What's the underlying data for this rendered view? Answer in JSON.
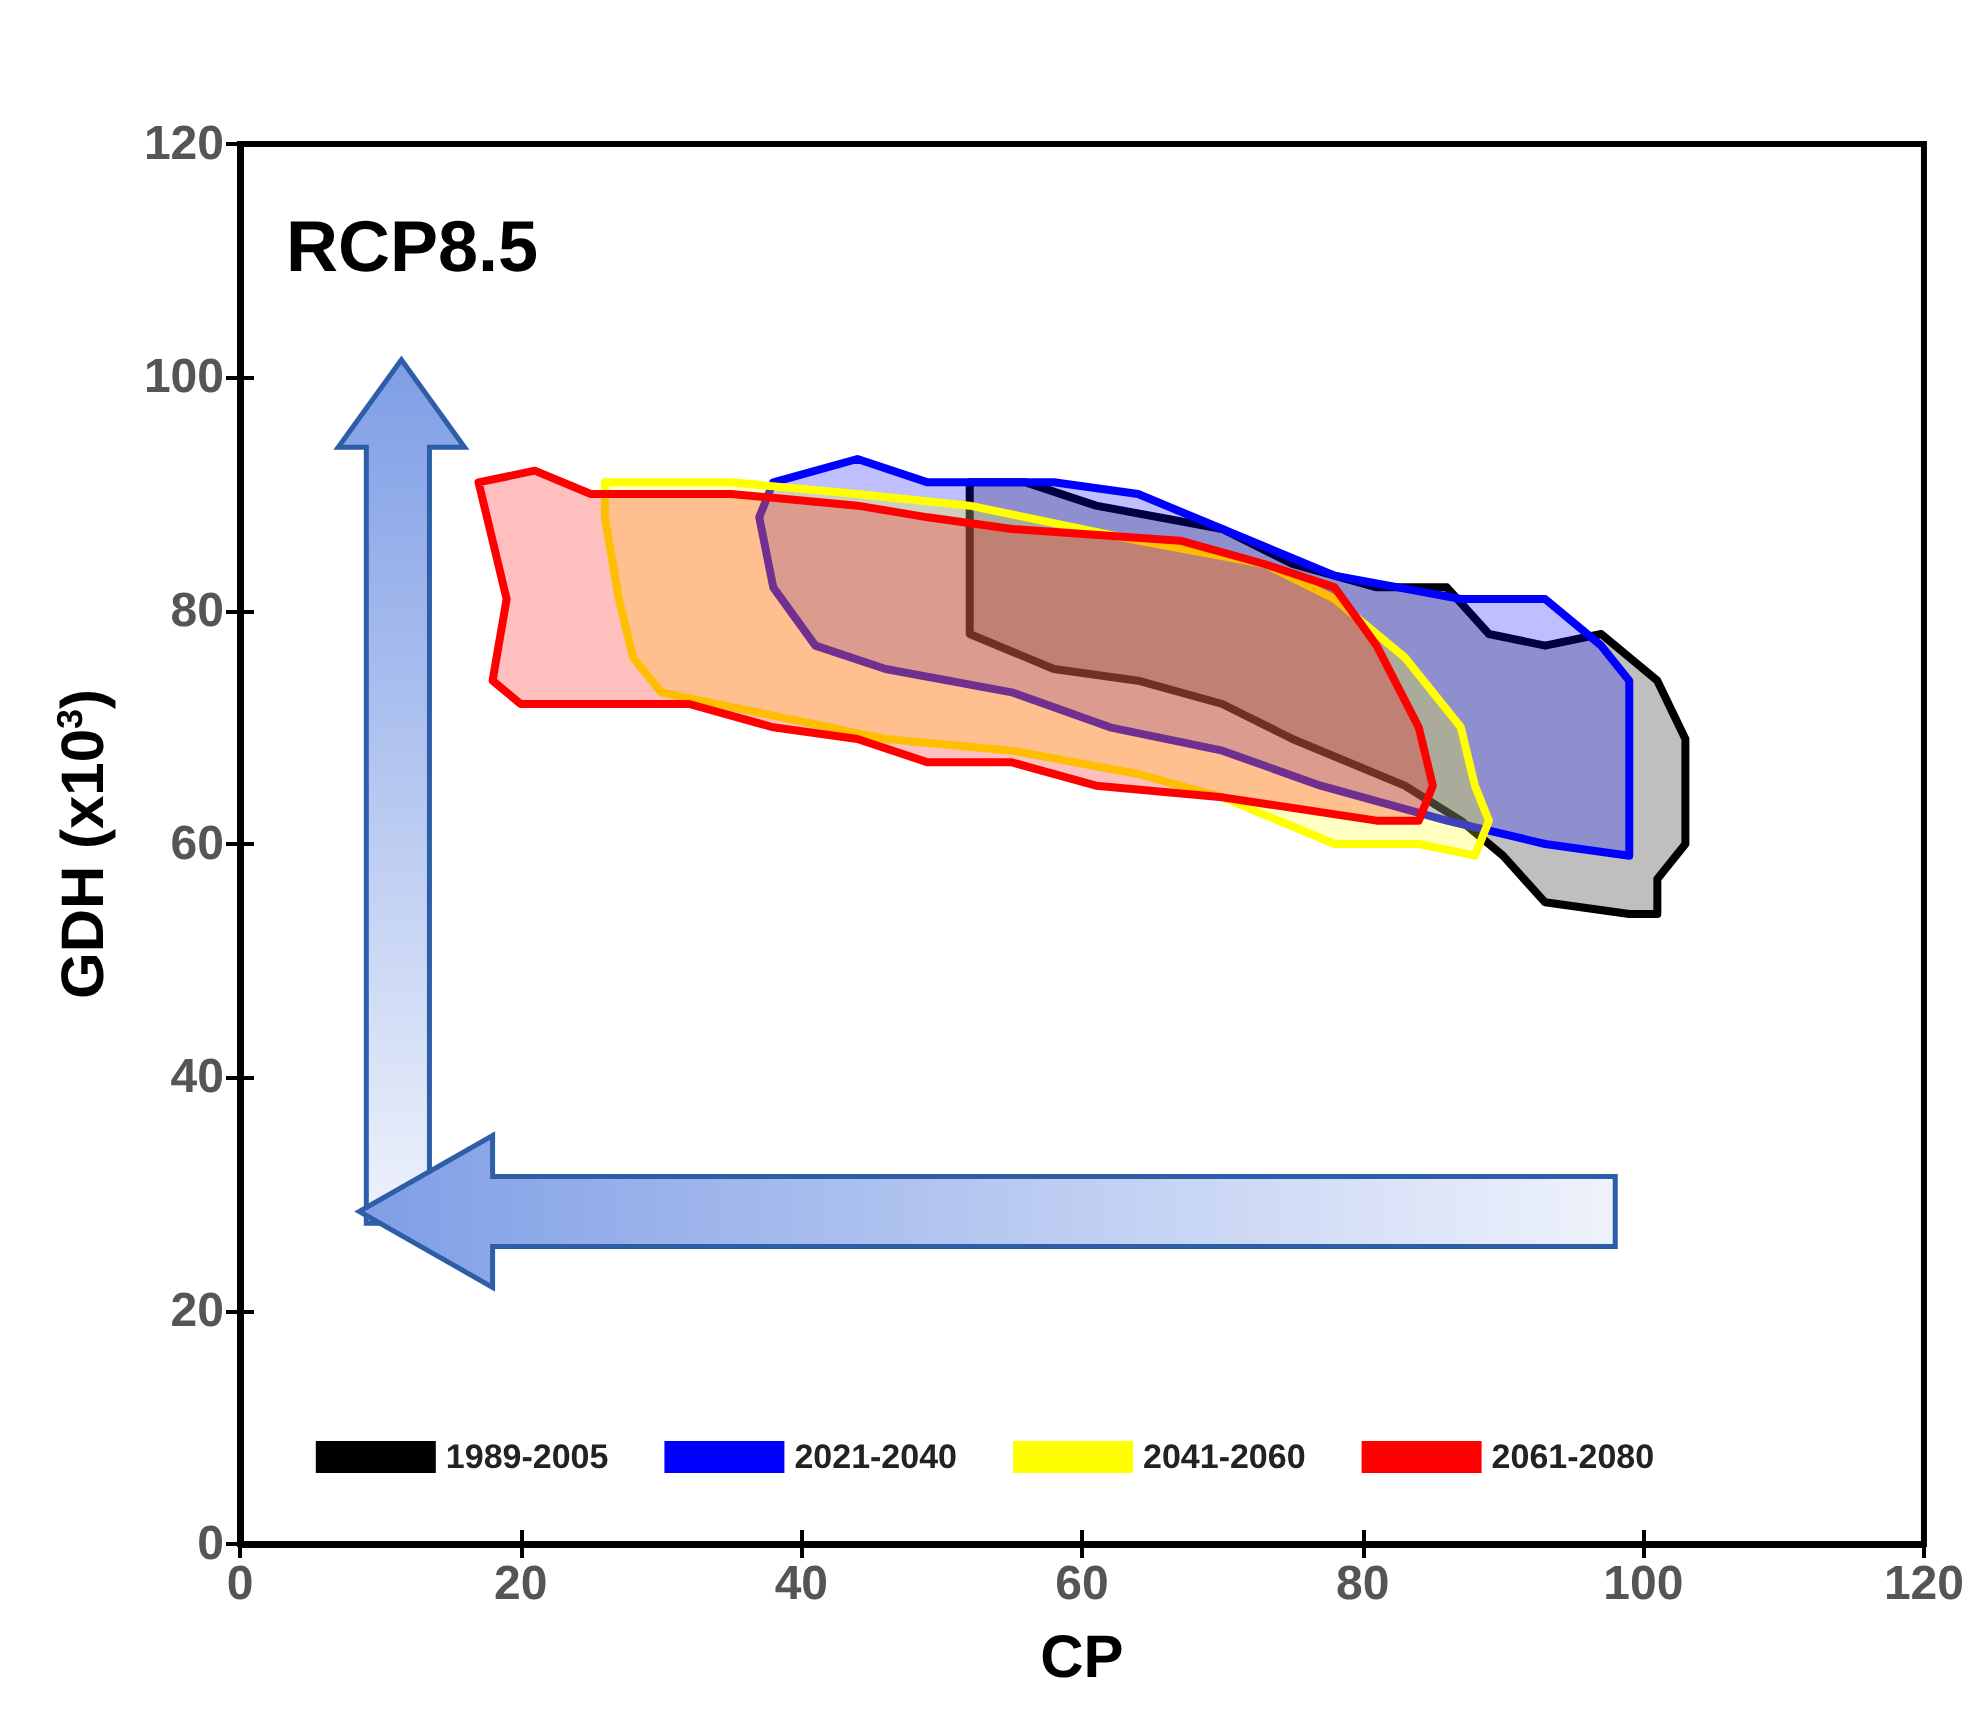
{
  "chart_data": {
    "type": "area",
    "title": "RCP8.5",
    "xlabel": "CP",
    "ylabel": "GDH (x10$^{3}$)",
    "xlim": [
      0,
      120
    ],
    "xticks": [
      0,
      20,
      40,
      60,
      80,
      100,
      120
    ],
    "ylim": [
      0,
      120
    ],
    "yticks": [
      0,
      20,
      40,
      60,
      80,
      100,
      120
    ],
    "grid": false,
    "legend": "bottom",
    "series": [
      {
        "name": "1989-2005",
        "color": "#000000",
        "x": [
          52,
          56,
          61,
          70,
          75,
          81,
          86,
          89,
          93,
          97,
          101,
          103,
          103,
          101,
          101,
          99,
          93,
          90,
          87,
          83,
          75,
          70,
          64,
          58,
          52,
          52
        ],
        "values": [
          91,
          91,
          89,
          87,
          84,
          82,
          82,
          78,
          77,
          78,
          74,
          69,
          60,
          57,
          54,
          54,
          55,
          59,
          62,
          65,
          69,
          72,
          74,
          75,
          78,
          82
        ]
      },
      {
        "name": "2021-2040",
        "color": "#0000ff",
        "x": [
          38,
          44,
          49,
          58,
          64,
          70,
          78,
          87,
          93,
          97,
          99,
          99,
          93,
          86,
          77,
          70,
          62,
          55,
          46,
          41,
          38,
          37
        ],
        "values": [
          91,
          93,
          91,
          91,
          90,
          87,
          83,
          81,
          81,
          77,
          74,
          59,
          60,
          62,
          65,
          68,
          70,
          73,
          75,
          77,
          82,
          88
        ]
      },
      {
        "name": "2041-2060",
        "color": "#ffff00",
        "x": [
          26,
          30,
          35,
          44,
          52,
          64,
          73,
          78,
          83,
          87,
          88,
          89,
          88,
          84,
          78,
          70,
          64,
          55,
          46,
          38,
          30,
          28,
          27,
          26
        ],
        "values": [
          91,
          91,
          91,
          90,
          89,
          86,
          84,
          81,
          76,
          70,
          65,
          62,
          59,
          60,
          60,
          64,
          66,
          68,
          69,
          71,
          73,
          76,
          81,
          88
        ]
      },
      {
        "name": "2061-2080",
        "color": "#ff0000",
        "x": [
          17,
          21,
          25,
          35,
          44,
          49,
          55,
          67,
          73,
          78,
          81,
          84,
          85,
          84,
          81,
          70,
          61,
          55,
          49,
          44,
          38,
          32,
          25,
          20,
          18,
          19,
          18
        ],
        "values": [
          91,
          92,
          90,
          90,
          89,
          88,
          87,
          86,
          84,
          82,
          77,
          70,
          65,
          62,
          62,
          64,
          65,
          67,
          67,
          69,
          70,
          72,
          72,
          72,
          74,
          81,
          86
        ]
      }
    ]
  }
}
